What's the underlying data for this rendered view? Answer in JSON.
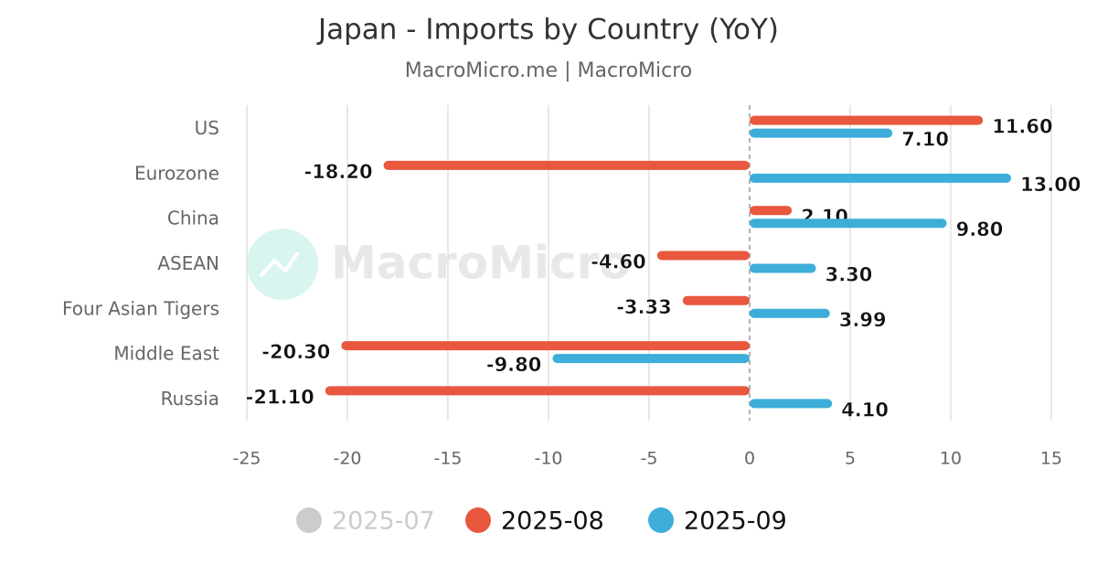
{
  "chart_data": {
    "type": "hbar",
    "title": "Japan - Imports by Country (YoY)",
    "subtitle": "MacroMicro.me | MacroMicro",
    "watermark": "MacroMicro",
    "categories": [
      "US",
      "Eurozone",
      "China",
      "ASEAN",
      "Four Asian Tigers",
      "Middle East",
      "Russia"
    ],
    "series": [
      {
        "name": "2025-07",
        "color": "#cccccc",
        "visible": false,
        "values": [
          null,
          null,
          null,
          null,
          null,
          null,
          null
        ]
      },
      {
        "name": "2025-08",
        "color": "#e9573f",
        "visible": true,
        "values": [
          11.6,
          -18.2,
          2.1,
          -4.6,
          -3.33,
          -20.3,
          -21.1
        ],
        "value_labels": [
          "11.60",
          "-18.20",
          "2.10",
          "-4.60",
          "-3.33",
          "-20.30",
          "-21.10"
        ]
      },
      {
        "name": "2025-09",
        "color": "#3caed9",
        "visible": true,
        "values": [
          7.1,
          13.0,
          9.8,
          3.3,
          3.99,
          -9.8,
          4.1
        ],
        "value_labels": [
          "7.10",
          "13.00",
          "9.80",
          "3.30",
          "3.99",
          "-9.80",
          "4.10"
        ]
      }
    ],
    "xlim": [
      -25,
      15
    ],
    "xticks": [
      -25,
      -20,
      -15,
      -10,
      -5,
      0,
      5,
      10,
      15
    ],
    "grid": true,
    "legend": "bottom"
  }
}
